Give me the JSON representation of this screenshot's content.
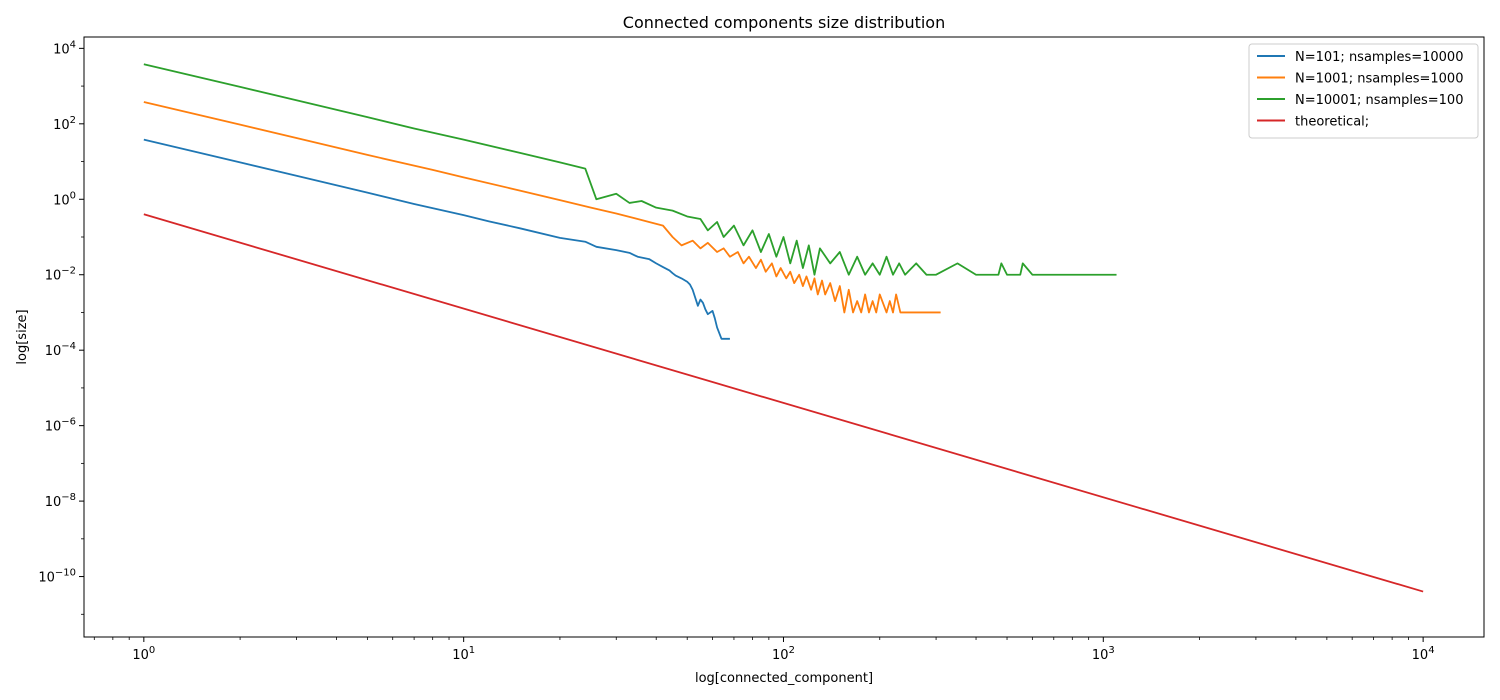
{
  "chart_data": {
    "type": "line",
    "title": "Connected components size distribution",
    "xlabel": "log[connected_component]",
    "ylabel": "log[size]",
    "xscale": "log",
    "yscale": "log",
    "xlim": [
      0.65,
      15500
    ],
    "ylim": [
      2.5e-12,
      20000.0
    ],
    "x_major_ticks": [
      1,
      10,
      100,
      1000,
      10000
    ],
    "x_tick_labels": [
      "10^0",
      "10^1",
      "10^2",
      "10^3",
      "10^4"
    ],
    "y_major_ticks": [
      1e-10,
      1e-08,
      1e-06,
      0.0001,
      0.01,
      1,
      100,
      10000
    ],
    "y_tick_labels": [
      "10^-10",
      "10^-8",
      "10^-6",
      "10^-4",
      "10^-2",
      "10^0",
      "10^2",
      "10^4"
    ],
    "grid": false,
    "legend_position": "top-right",
    "series": [
      {
        "name": "N=101; nsamples=10000",
        "color": "#1f77b4",
        "x": [
          1,
          2,
          3,
          5,
          7,
          10,
          12,
          15,
          20,
          24,
          26,
          30,
          33,
          35,
          38,
          40,
          42,
          44,
          45,
          46,
          48,
          50,
          51,
          52,
          54,
          55,
          56,
          57,
          58,
          60,
          61,
          62,
          64,
          68
        ],
        "y": [
          38,
          9.5,
          4.2,
          1.5,
          0.75,
          0.38,
          0.26,
          0.17,
          0.095,
          0.075,
          0.055,
          0.045,
          0.038,
          0.03,
          0.026,
          0.02,
          0.016,
          0.013,
          0.011,
          0.0095,
          0.008,
          0.0065,
          0.0055,
          0.004,
          0.0015,
          0.0022,
          0.0018,
          0.0012,
          0.0009,
          0.0011,
          0.0007,
          0.0004,
          0.0002,
          0.0002
        ]
      },
      {
        "name": "N=1001; nsamples=1000",
        "color": "#ff7f0e",
        "x": [
          1,
          2,
          3,
          5,
          8,
          10,
          15,
          20,
          25,
          30,
          35,
          38,
          42,
          45,
          48,
          52,
          55,
          58,
          62,
          65,
          68,
          72,
          75,
          78,
          82,
          85,
          88,
          92,
          95,
          98,
          102,
          105,
          108,
          112,
          115,
          118,
          122,
          125,
          128,
          132,
          135,
          140,
          145,
          150,
          155,
          160,
          165,
          170,
          175,
          180,
          185,
          190,
          195,
          200,
          210,
          215,
          220,
          225,
          232,
          250,
          280,
          310
        ],
        "y": [
          380,
          95,
          42,
          15,
          6,
          3.8,
          1.7,
          0.95,
          0.6,
          0.42,
          0.3,
          0.25,
          0.2,
          0.1,
          0.06,
          0.08,
          0.05,
          0.07,
          0.04,
          0.05,
          0.03,
          0.04,
          0.02,
          0.03,
          0.015,
          0.025,
          0.012,
          0.02,
          0.009,
          0.015,
          0.008,
          0.012,
          0.006,
          0.01,
          0.005,
          0.009,
          0.004,
          0.008,
          0.003,
          0.007,
          0.003,
          0.006,
          0.002,
          0.005,
          0.001,
          0.004,
          0.001,
          0.002,
          0.001,
          0.003,
          0.001,
          0.002,
          0.001,
          0.003,
          0.001,
          0.002,
          0.001,
          0.003,
          0.001,
          0.001,
          0.001,
          0.001
        ]
      },
      {
        "name": "N=10001; nsamples=100",
        "color": "#2ca02c",
        "x": [
          1,
          2,
          3,
          5,
          7,
          10,
          15,
          20,
          24,
          26,
          30,
          33,
          36,
          40,
          45,
          50,
          55,
          58,
          62,
          65,
          70,
          75,
          80,
          85,
          90,
          95,
          100,
          105,
          110,
          115,
          120,
          125,
          130,
          140,
          150,
          160,
          170,
          180,
          190,
          200,
          210,
          220,
          230,
          240,
          260,
          280,
          300,
          350,
          400,
          470,
          480,
          500,
          550,
          560,
          600,
          700,
          800,
          1000,
          1100
        ],
        "y": [
          3800,
          950,
          420,
          150,
          75,
          38,
          17,
          9.5,
          6.5,
          1,
          1.4,
          0.8,
          0.9,
          0.6,
          0.5,
          0.35,
          0.3,
          0.15,
          0.25,
          0.1,
          0.2,
          0.06,
          0.15,
          0.04,
          0.12,
          0.03,
          0.1,
          0.02,
          0.08,
          0.015,
          0.06,
          0.01,
          0.05,
          0.02,
          0.04,
          0.01,
          0.03,
          0.01,
          0.02,
          0.01,
          0.03,
          0.01,
          0.02,
          0.01,
          0.02,
          0.01,
          0.01,
          0.02,
          0.01,
          0.01,
          0.02,
          0.01,
          0.01,
          0.02,
          0.01,
          0.01,
          0.01,
          0.01,
          0.01
        ]
      },
      {
        "name": "theoretical;",
        "color": "#d62728",
        "x": [
          1,
          10000
        ],
        "y": [
          0.4,
          4e-11
        ]
      }
    ]
  }
}
